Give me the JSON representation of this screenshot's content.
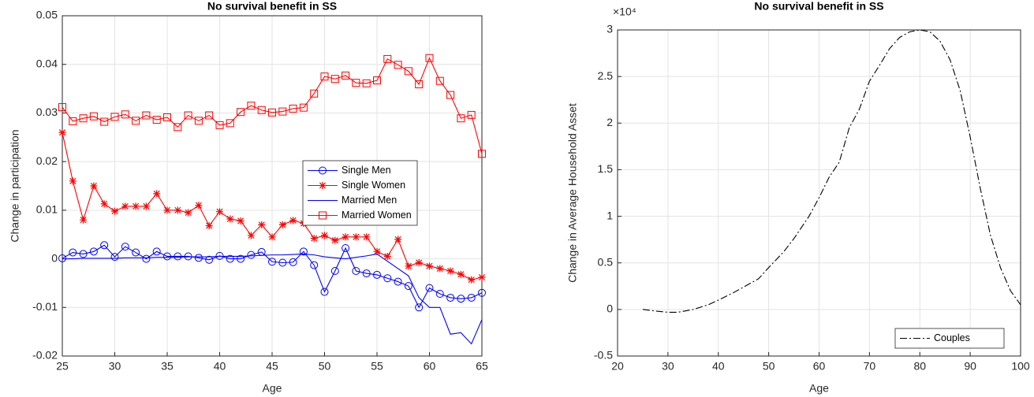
{
  "chart_data": [
    {
      "type": "line",
      "title": "No survival benefit in SS",
      "x_label": "Age",
      "y_label": "Change in participation",
      "x": [
        25,
        26,
        27,
        28,
        29,
        30,
        31,
        32,
        33,
        34,
        35,
        36,
        37,
        38,
        39,
        40,
        41,
        42,
        43,
        44,
        45,
        46,
        47,
        48,
        49,
        50,
        51,
        52,
        53,
        54,
        55,
        56,
        57,
        58,
        59,
        60,
        61,
        62,
        63,
        64,
        65
      ],
      "series": [
        {
          "name": "Single Men",
          "color": "#0000ff",
          "marker": "circle",
          "line_style": "solid",
          "values": [
            0.0001,
            0.0013,
            0.001,
            0.0015,
            0.0028,
            0.0004,
            0.0025,
            0.0013,
            0.0,
            0.0015,
            0.0005,
            0.0005,
            0.0005,
            0.0002,
            -0.0002,
            0.0006,
            0.0,
            0.0,
            0.0008,
            0.0014,
            -0.0006,
            -0.0008,
            -0.0007,
            0.0015,
            -0.0013,
            -0.0068,
            -0.0025,
            0.0022,
            -0.0025,
            -0.003,
            -0.0033,
            -0.004,
            -0.0047,
            -0.0056,
            -0.01,
            -0.006,
            -0.0072,
            -0.008,
            -0.0082,
            -0.008,
            -0.007
          ]
        },
        {
          "name": "Single Women",
          "color": "#ff0000",
          "marker": "star",
          "line_style": "solid",
          "values": [
            0.026,
            0.016,
            0.008,
            0.015,
            0.0113,
            0.0098,
            0.0108,
            0.0108,
            0.0108,
            0.0134,
            0.01,
            0.01,
            0.0095,
            0.011,
            0.0068,
            0.0097,
            0.0082,
            0.0078,
            0.0048,
            0.007,
            0.0045,
            0.007,
            0.0079,
            0.0073,
            0.0042,
            0.0048,
            0.0038,
            0.0045,
            0.0045,
            0.0045,
            0.0015,
            0.0005,
            0.004,
            -0.0015,
            -0.0008,
            -0.0015,
            -0.002,
            -0.0025,
            -0.0032,
            -0.0043,
            -0.0038
          ]
        },
        {
          "name": "Married Men",
          "color": "#0000ff",
          "marker": "none",
          "line_style": "solid",
          "values": [
            0.0,
            0.0,
            0.0001,
            0.0001,
            0.0001,
            0.0001,
            0.0002,
            0.0002,
            0.0002,
            0.0003,
            0.0003,
            0.0003,
            0.0004,
            0.0004,
            0.0004,
            0.0005,
            0.0005,
            0.0005,
            0.0006,
            0.0007,
            0.0008,
            0.0008,
            0.0009,
            0.001,
            0.0008,
            0.0004,
            0.0002,
            0.0,
            0.0003,
            0.0006,
            0.001,
            -0.0005,
            -0.002,
            -0.0035,
            -0.008,
            -0.01,
            -0.01,
            -0.0155,
            -0.0152,
            -0.0175,
            -0.0125
          ]
        },
        {
          "name": "Married Women",
          "color": "#ff0000",
          "marker": "square",
          "line_style": "solid",
          "values": [
            0.0312,
            0.0283,
            0.0289,
            0.0293,
            0.0282,
            0.0292,
            0.0297,
            0.0284,
            0.0295,
            0.0286,
            0.0291,
            0.0271,
            0.0295,
            0.0284,
            0.0295,
            0.0275,
            0.0279,
            0.0302,
            0.0315,
            0.0306,
            0.0301,
            0.0303,
            0.0309,
            0.0311,
            0.034,
            0.0375,
            0.037,
            0.0377,
            0.0362,
            0.0361,
            0.0367,
            0.0411,
            0.0399,
            0.0386,
            0.0359,
            0.0413,
            0.0366,
            0.0337,
            0.0289,
            0.0296,
            0.0216
          ]
        }
      ],
      "xlim": [
        25,
        65
      ],
      "xticks": [
        25,
        30,
        35,
        40,
        45,
        50,
        55,
        60,
        65
      ],
      "ylim": [
        -0.02,
        0.05
      ],
      "yticks": [
        -0.02,
        -0.01,
        0,
        0.01,
        0.02,
        0.03,
        0.04,
        0.05
      ],
      "grid": true,
      "legend": "east"
    },
    {
      "type": "line",
      "title": "No survival benefit in SS",
      "x_label": "Age",
      "y_label": "Change in Average Household Asset",
      "y_exponent": "×10⁴",
      "x": [
        25,
        28,
        30,
        32,
        35,
        38,
        40,
        43,
        45,
        48,
        50,
        53,
        55,
        58,
        60,
        62,
        64,
        66,
        68,
        70,
        72,
        74,
        76,
        78,
        80,
        82,
        84,
        86,
        88,
        90,
        92,
        94,
        96,
        98,
        100
      ],
      "series": [
        {
          "name": "Couples",
          "color": "#000000",
          "marker": "none",
          "line_style": "dashdot",
          "values": [
            0,
            -0.02,
            -0.03,
            -0.03,
            0,
            0.05,
            0.1,
            0.18,
            0.24,
            0.33,
            0.45,
            0.62,
            0.76,
            1.0,
            1.2,
            1.42,
            1.58,
            1.95,
            2.15,
            2.45,
            2.62,
            2.8,
            2.92,
            2.98,
            3.0,
            2.98,
            2.88,
            2.68,
            2.35,
            1.85,
            1.3,
            0.8,
            0.45,
            0.2,
            0.05
          ]
        }
      ],
      "xlim": [
        20,
        100
      ],
      "xticks": [
        20,
        30,
        40,
        50,
        60,
        70,
        80,
        90,
        100
      ],
      "ylim": [
        -0.5,
        3
      ],
      "yticks": [
        -0.5,
        0,
        0.5,
        1,
        1.5,
        2,
        2.5,
        3
      ],
      "grid": true,
      "legend": "southeast"
    }
  ]
}
